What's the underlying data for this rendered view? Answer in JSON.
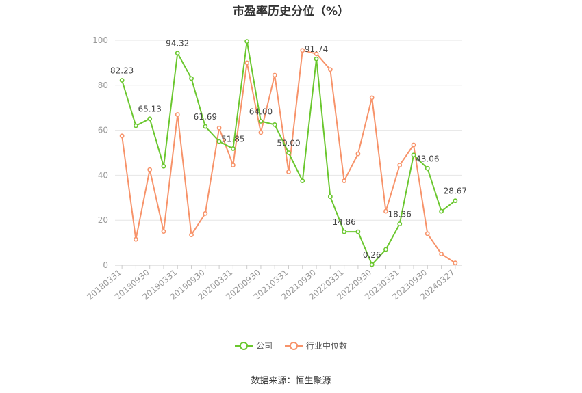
{
  "chart_data": {
    "type": "line",
    "title": "市盈率历史分位（%）",
    "ylim": [
      0,
      100
    ],
    "yticks": [
      0,
      20,
      40,
      60,
      80,
      100
    ],
    "grid": true,
    "legend_position": "bottom",
    "x_tick_labels": [
      "20180331",
      "20180930",
      "20190331",
      "20190930",
      "20200331",
      "20200930",
      "20210331",
      "20210930",
      "20220331",
      "20220930",
      "20230331",
      "20230930",
      "20240327"
    ],
    "x": [
      "20180331",
      "20180630",
      "20180930",
      "20181231",
      "20190331",
      "20190630",
      "20190930",
      "20191231",
      "20200331",
      "20200630",
      "20200930",
      "20201231",
      "20210331",
      "20210630",
      "20210930",
      "20211231",
      "20220331",
      "20220630",
      "20220930",
      "20221231",
      "20230331",
      "20230630",
      "20230930",
      "20231231",
      "20240327"
    ],
    "series": [
      {
        "name": "公司",
        "color": "#6ac72e",
        "values": [
          82.23,
          62,
          65.13,
          44,
          94.32,
          83,
          61.69,
          55,
          51.85,
          99.5,
          64.0,
          62.5,
          50.0,
          37.5,
          91.74,
          30.5,
          14.86,
          14.86,
          0.26,
          7,
          18.36,
          49,
          43.06,
          24,
          28.67
        ],
        "labels": [
          "82.23",
          "",
          "65.13",
          "",
          "94.32",
          "",
          "61.69",
          "",
          "51.85",
          "",
          "64.00",
          "",
          "50.00",
          "",
          "91.74",
          "",
          "14.86",
          "",
          "0.26",
          "",
          "18.36",
          "",
          "43.06",
          "",
          "28.67"
        ]
      },
      {
        "name": "行业中位数",
        "color": "#f7936a",
        "values": [
          57.5,
          11.5,
          42.5,
          15,
          67,
          13.5,
          23,
          61,
          44.5,
          90,
          59,
          84.5,
          41.5,
          95.5,
          94,
          87,
          37.5,
          49.5,
          74.5,
          24,
          44.5,
          53.5,
          14,
          5,
          1
        ]
      }
    ]
  },
  "source_text": "数据来源：恒生聚源"
}
